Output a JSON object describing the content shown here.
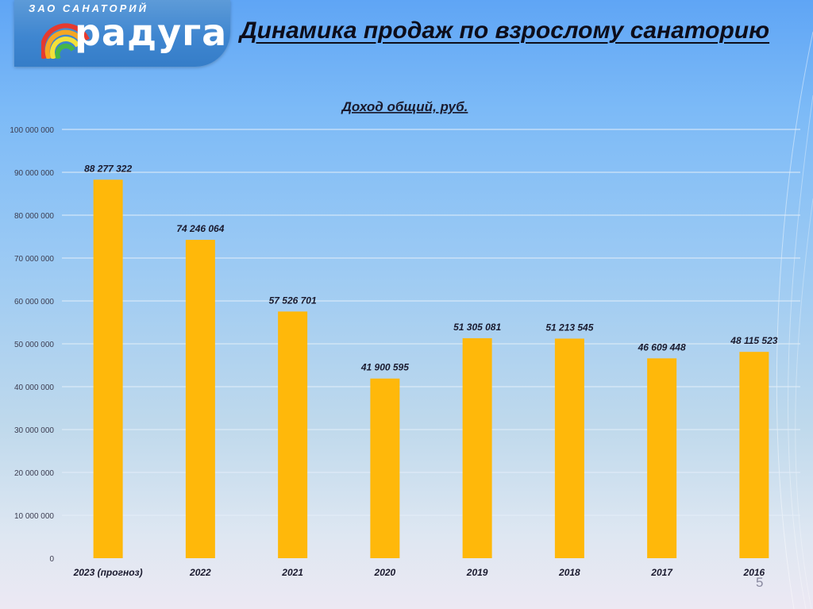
{
  "brand": {
    "top_text": "ЗАО САНАТОРИЙ",
    "name": "радуга"
  },
  "page": {
    "title": "Динамика продаж по взрослому санаторию",
    "number": "5"
  },
  "chart_data": {
    "type": "bar",
    "title": "Доход общий, руб.",
    "categories": [
      "2023 (прогноз)",
      "2022",
      "2021",
      "2020",
      "2019",
      "2018",
      "2017",
      "2016"
    ],
    "values": [
      88277322,
      74246064,
      57526701,
      41900595,
      51305081,
      51213545,
      46609448,
      48115523
    ],
    "value_labels": [
      "88 277 322",
      "74 246 064",
      "57 526 701",
      "41 900 595",
      "51 305 081",
      "51 213 545",
      "46 609 448",
      "48 115 523"
    ],
    "yticks": [
      0,
      10000000,
      20000000,
      30000000,
      40000000,
      50000000,
      60000000,
      70000000,
      80000000,
      90000000,
      100000000
    ],
    "ytick_labels": [
      "0",
      "10 000 000",
      "20 000 000",
      "30 000 000",
      "40 000 000",
      "50 000 000",
      "60 000 000",
      "70 000 000",
      "80 000 000",
      "90 000 000",
      "100 000 000"
    ],
    "ylim": [
      0,
      100000000
    ],
    "grid": true,
    "bar_color": "#ffb80a",
    "grid_color": "#e3eef9"
  }
}
